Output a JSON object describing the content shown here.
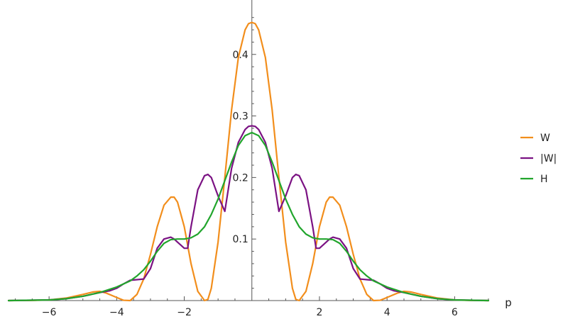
{
  "chart_data": {
    "type": "line",
    "xlabel": "p",
    "ylabel": "",
    "xlim": [
      -7.2,
      7.0
    ],
    "ylim": [
      0,
      0.47
    ],
    "x_ticks": [
      -6,
      -4,
      -2,
      2,
      4,
      6
    ],
    "x_tick_labels": [
      "−6",
      "−4",
      "−2",
      "2",
      "4",
      "6"
    ],
    "y_ticks": [
      0.1,
      0.2,
      0.3,
      0.4
    ],
    "y_tick_labels": [
      "0.1",
      "0.2",
      "0.3",
      "0.4"
    ],
    "grid": false,
    "legend_position": "right",
    "series": [
      {
        "name": "W",
        "color": "#f28e1c",
        "x": [
          -7.2,
          -6.5,
          -6.0,
          -5.5,
          -5.0,
          -4.7,
          -4.5,
          -4.3,
          -4.0,
          -3.8,
          -3.6,
          -3.4,
          -3.2,
          -3.0,
          -2.8,
          -2.6,
          -2.4,
          -2.3,
          -2.2,
          -2.0,
          -1.8,
          -1.6,
          -1.4,
          -1.3,
          -1.2,
          -1.0,
          -0.8,
          -0.6,
          -0.4,
          -0.2,
          -0.1,
          0.0,
          0.1,
          0.2,
          0.4,
          0.6,
          0.8,
          1.0,
          1.2,
          1.3,
          1.4,
          1.6,
          1.8,
          2.0,
          2.2,
          2.3,
          2.4,
          2.6,
          2.8,
          3.0,
          3.2,
          3.4,
          3.6,
          3.8,
          4.0,
          4.3,
          4.5,
          4.7,
          5.0,
          5.5,
          6.0,
          6.5,
          7.0
        ],
        "y": [
          0.0,
          0.0002,
          0.001,
          0.004,
          0.01,
          0.014,
          0.015,
          0.012,
          0.005,
          0.0005,
          0.0,
          0.01,
          0.035,
          0.075,
          0.12,
          0.155,
          0.168,
          0.168,
          0.16,
          0.12,
          0.06,
          0.015,
          0.0,
          0.002,
          0.02,
          0.095,
          0.2,
          0.31,
          0.395,
          0.44,
          0.45,
          0.452,
          0.45,
          0.44,
          0.395,
          0.31,
          0.2,
          0.095,
          0.02,
          0.002,
          0.0,
          0.015,
          0.06,
          0.12,
          0.16,
          0.168,
          0.168,
          0.155,
          0.12,
          0.075,
          0.035,
          0.01,
          0.0,
          0.0005,
          0.005,
          0.012,
          0.015,
          0.014,
          0.01,
          0.004,
          0.001,
          0.0002,
          0.0
        ]
      },
      {
        "name": "|W|",
        "color": "#7b1283",
        "x": [
          -7.2,
          -6.0,
          -5.5,
          -5.0,
          -4.5,
          -4.2,
          -4.0,
          -3.8,
          -3.6,
          -3.4,
          -3.2,
          -3.0,
          -2.8,
          -2.6,
          -2.4,
          -2.3,
          -2.2,
          -2.0,
          -1.9,
          -1.8,
          -1.6,
          -1.4,
          -1.3,
          -1.2,
          -1.0,
          -0.8,
          -0.6,
          -0.4,
          -0.2,
          -0.1,
          0.0,
          0.1,
          0.2,
          0.4,
          0.6,
          0.8,
          1.0,
          1.2,
          1.3,
          1.4,
          1.6,
          1.8,
          1.9,
          2.0,
          2.2,
          2.3,
          2.4,
          2.6,
          2.8,
          3.0,
          3.2,
          3.4,
          3.6,
          3.8,
          4.0,
          4.2,
          4.5,
          5.0,
          5.5,
          6.0,
          7.0
        ],
        "y": [
          0.0,
          0.001,
          0.003,
          0.007,
          0.013,
          0.016,
          0.02,
          0.027,
          0.033,
          0.034,
          0.035,
          0.052,
          0.085,
          0.1,
          0.103,
          0.1,
          0.095,
          0.085,
          0.085,
          0.12,
          0.18,
          0.203,
          0.205,
          0.2,
          0.17,
          0.145,
          0.215,
          0.257,
          0.278,
          0.283,
          0.284,
          0.283,
          0.278,
          0.257,
          0.215,
          0.145,
          0.17,
          0.2,
          0.205,
          0.203,
          0.18,
          0.12,
          0.085,
          0.085,
          0.095,
          0.1,
          0.103,
          0.1,
          0.085,
          0.052,
          0.035,
          0.034,
          0.033,
          0.027,
          0.02,
          0.016,
          0.013,
          0.007,
          0.003,
          0.001,
          0.0
        ]
      },
      {
        "name": "H",
        "color": "#21a52c",
        "x": [
          -7.2,
          -6.0,
          -5.5,
          -5.0,
          -4.5,
          -4.0,
          -3.6,
          -3.4,
          -3.2,
          -3.0,
          -2.8,
          -2.6,
          -2.4,
          -2.2,
          -2.0,
          -1.8,
          -1.6,
          -1.4,
          -1.2,
          -1.0,
          -0.8,
          -0.6,
          -0.4,
          -0.2,
          0.0,
          0.2,
          0.4,
          0.6,
          0.8,
          1.0,
          1.2,
          1.4,
          1.6,
          1.8,
          2.0,
          2.2,
          2.4,
          2.6,
          2.8,
          3.0,
          3.2,
          3.4,
          3.6,
          4.0,
          4.5,
          5.0,
          5.5,
          6.0,
          7.0
        ],
        "y": [
          0.0,
          0.001,
          0.003,
          0.007,
          0.013,
          0.022,
          0.032,
          0.04,
          0.05,
          0.064,
          0.08,
          0.093,
          0.099,
          0.1,
          0.1,
          0.102,
          0.108,
          0.12,
          0.14,
          0.165,
          0.195,
          0.225,
          0.252,
          0.268,
          0.273,
          0.268,
          0.252,
          0.225,
          0.195,
          0.165,
          0.14,
          0.12,
          0.108,
          0.102,
          0.1,
          0.1,
          0.099,
          0.093,
          0.08,
          0.064,
          0.05,
          0.04,
          0.032,
          0.022,
          0.013,
          0.007,
          0.003,
          0.001,
          0.0
        ]
      }
    ]
  }
}
